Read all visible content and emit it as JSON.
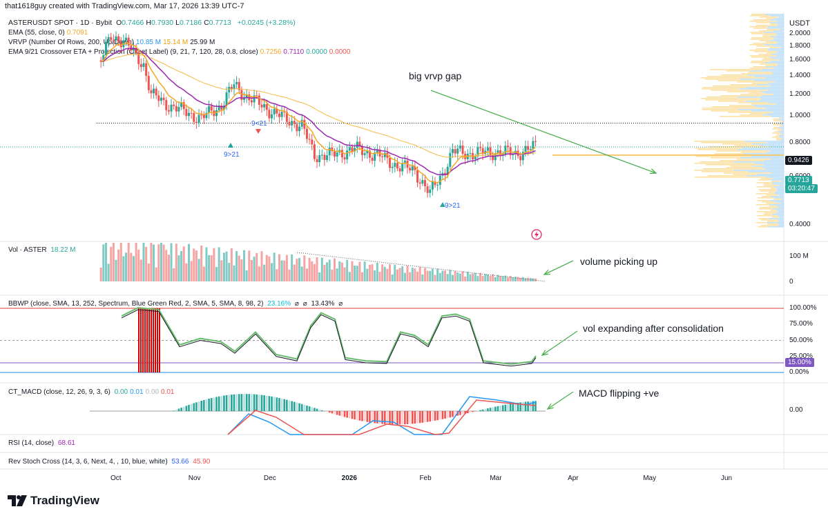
{
  "header": {
    "author_line": "that1618guy created with TradingView.com, Mar 17, 2026 13:39 UTC-7"
  },
  "symbol_legend": {
    "symbol": "ASTERUSDT SPOT · 1D · Bybit",
    "ohlc": [
      {
        "k": "O",
        "v": "0.7466"
      },
      {
        "k": "H",
        "v": "0.7930"
      },
      {
        "k": "L",
        "v": "0.7186"
      },
      {
        "k": "C",
        "v": "0.7713"
      }
    ],
    "change": "+0.0245 (+3.28%)"
  },
  "indicators": [
    {
      "label": "EMA (55, close, 0)",
      "values": [
        {
          "v": "0.7091",
          "color": "#f5a623"
        }
      ]
    },
    {
      "label": "VRVP (Number Of Rows, 200, Up/Down)",
      "values": [
        {
          "v": "10.85 M",
          "color": "#2196f3"
        },
        {
          "v": "15.14 M",
          "color": "#e5a100"
        },
        {
          "v": "25.99 M",
          "color": "#131722"
        }
      ]
    },
    {
      "label": "EMA 9/21 Crossover ETA + Projection (Offset Label) (9, 21, 7, 120, 28, 0.8, close)",
      "values": [
        {
          "v": "0.7256",
          "color": "#f5a623"
        },
        {
          "v": "0.7110",
          "color": "#9c27b0"
        },
        {
          "v": "0.0000",
          "color": "#26a69a"
        },
        {
          "v": "0.0000",
          "color": "#ef5350"
        }
      ]
    }
  ],
  "currency": "USDT",
  "price_axis": [
    "2.0000",
    "1.8000",
    "1.6000",
    "1.4000",
    "1.2000",
    "1.0000",
    "0.8000",
    "0.6000",
    "0.4000"
  ],
  "price_tags": {
    "level": "0.9426",
    "last": "0.7713",
    "countdown": "03:20:47"
  },
  "crossover_labels": [
    "9>21",
    "9<21",
    "9>21"
  ],
  "volume_pane": {
    "label": "Vol · ASTER",
    "value": "18.22 M",
    "axis": [
      "100 M",
      "0"
    ]
  },
  "bbwp_pane": {
    "label": "BBWP (close, SMA, 13, 252, Spectrum, Blue Green Red, 2, SMA, 5, SMA, 8, 98, 2)",
    "value1": "23.16%",
    "value2": "13.43%",
    "axis": [
      "100.00%",
      "75.00%",
      "50.00%",
      "25.00%",
      "0.00%"
    ],
    "tag": "15.00%"
  },
  "macd_pane": {
    "label": "CT_MACD (close, 12, 26, 9, 3, 6)",
    "values": [
      {
        "v": "0.00",
        "color": "#26a69a"
      },
      {
        "v": "0.01",
        "color": "#2196f3"
      },
      {
        "v": "0.00",
        "color": "#b2b5be"
      },
      {
        "v": "0.01",
        "color": "#ef5350"
      }
    ],
    "axis": [
      "0.00"
    ]
  },
  "rsi_pane": {
    "label": "RSI (14, close)",
    "value": "68.61"
  },
  "stoch_pane": {
    "label": "Rev Stoch Cross (14, 3, 6, Next, 4, , 10, blue, white)",
    "value1": "53.66",
    "value2": "45.90"
  },
  "time_axis": [
    "Oct",
    "Nov",
    "Dec",
    "2026",
    "Feb",
    "Mar",
    "Apr",
    "May",
    "Jun"
  ],
  "annotations": {
    "vrvp_gap": "big vrvp gap",
    "volume": "volume picking up",
    "bbwp": "vol expanding after consolidation",
    "macd": "MACD flipping +ve"
  },
  "footer": {
    "brand": "TradingView"
  },
  "colors": {
    "up": "#26a69a",
    "down": "#ef5350",
    "ema55": "#f5b942",
    "ema9": "#f5a623",
    "ema21": "#9c27b0",
    "arrow": "#4caf50"
  },
  "chart_data": {
    "type": "candlestick",
    "title": "ASTERUSDT SPOT · 1D · Bybit",
    "x_range": [
      "2025-09-17",
      "2026-06-30"
    ],
    "ylim": [
      0.3,
      2.15
    ],
    "y_scale": "log",
    "grid": false,
    "ohlc_last": {
      "open": 0.7466,
      "high": 0.793,
      "low": 0.7186,
      "close": 0.7713
    },
    "price_path": [
      {
        "date": "2025-09-25",
        "close": 1.6
      },
      {
        "date": "2025-09-29",
        "close": 1.95
      },
      {
        "date": "2025-10-04",
        "close": 1.9
      },
      {
        "date": "2025-10-09",
        "close": 1.65
      },
      {
        "date": "2025-10-12",
        "close": 1.55
      },
      {
        "date": "2025-10-15",
        "close": 1.2
      },
      {
        "date": "2025-10-20",
        "close": 1.12
      },
      {
        "date": "2025-10-27",
        "close": 1.05
      },
      {
        "date": "2025-11-04",
        "close": 0.98
      },
      {
        "date": "2025-11-12",
        "close": 1.1
      },
      {
        "date": "2025-11-17",
        "close": 1.3
      },
      {
        "date": "2025-11-22",
        "close": 1.18
      },
      {
        "date": "2025-11-29",
        "close": 1.08
      },
      {
        "date": "2025-12-07",
        "close": 0.98
      },
      {
        "date": "2025-12-14",
        "close": 0.92
      },
      {
        "date": "2025-12-19",
        "close": 0.72
      },
      {
        "date": "2025-12-26",
        "close": 0.72
      },
      {
        "date": "2026-01-04",
        "close": 0.76
      },
      {
        "date": "2026-01-13",
        "close": 0.72
      },
      {
        "date": "2026-01-21",
        "close": 0.66
      },
      {
        "date": "2026-01-28",
        "close": 0.63
      },
      {
        "date": "2026-02-03",
        "close": 0.52
      },
      {
        "date": "2026-02-08",
        "close": 0.62
      },
      {
        "date": "2026-02-12",
        "close": 0.74
      },
      {
        "date": "2026-02-20",
        "close": 0.73
      },
      {
        "date": "2026-03-01",
        "close": 0.74
      },
      {
        "date": "2026-03-09",
        "close": 0.73
      },
      {
        "date": "2026-03-17",
        "close": 0.7713
      }
    ],
    "ema55_last": 0.7091,
    "ema9_last": 0.7256,
    "ema21_last": 0.711,
    "level_line": 0.9426,
    "bbwp_last_pct": 23.16,
    "bbwp_threshold_pct": 15,
    "volume_last_millions": 18.22
  }
}
